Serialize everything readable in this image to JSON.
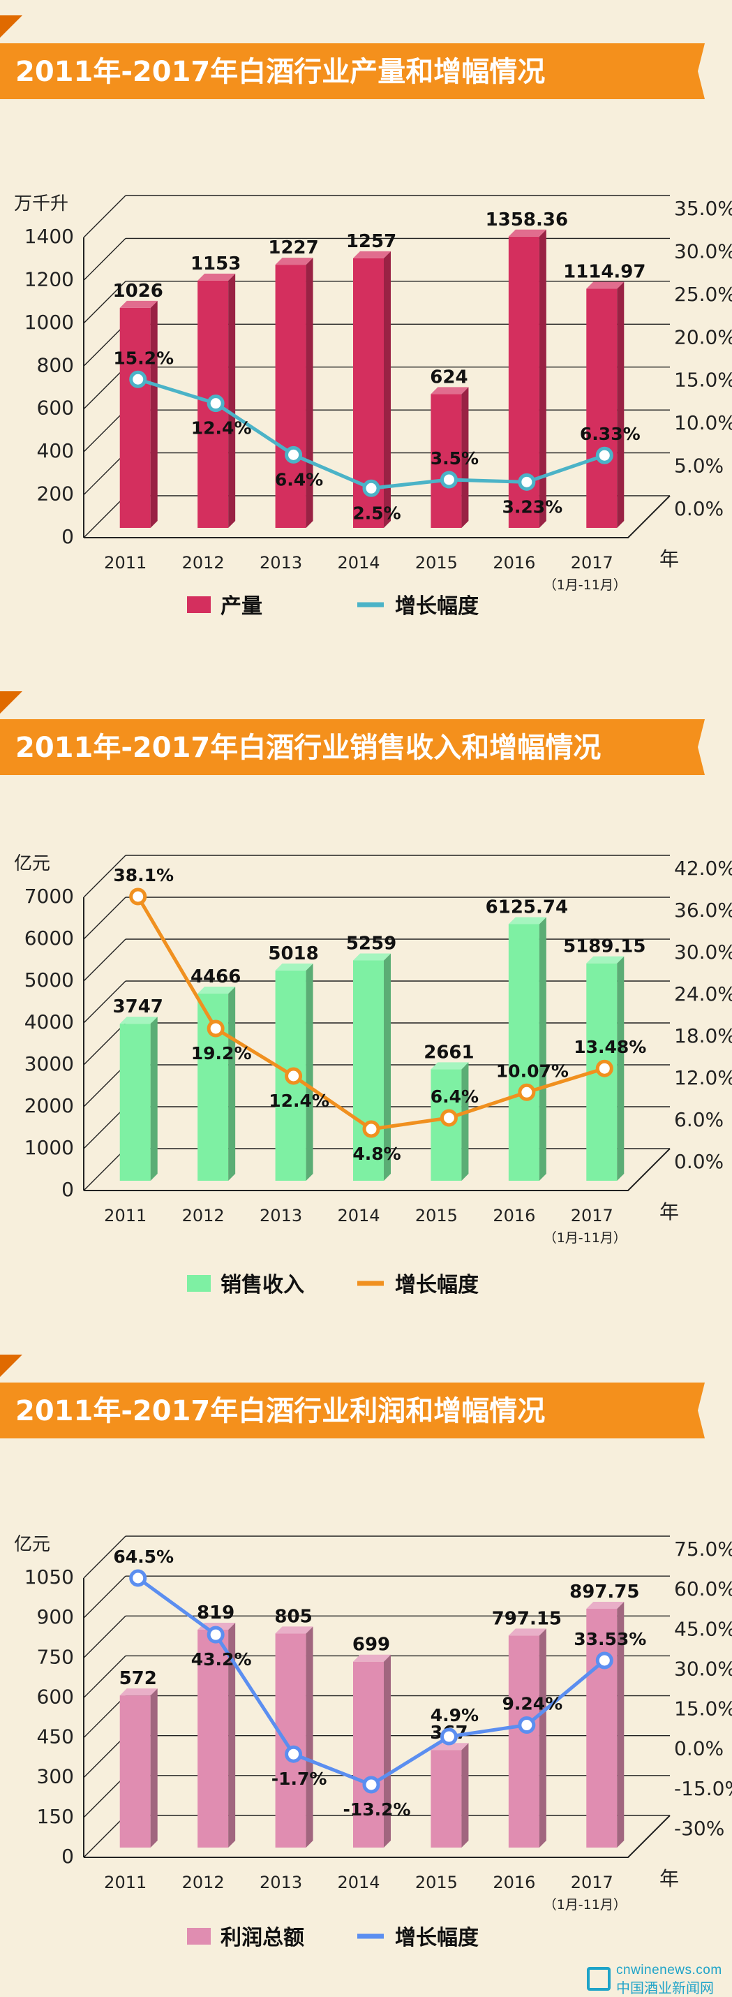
{
  "chart_data": [
    {
      "type": "bar",
      "title": "2011年-2017年白酒行业产量和增幅情况",
      "ylabel": "万千升",
      "xlabel": "年",
      "categories": [
        "2011",
        "2012",
        "2013",
        "2014",
        "2015",
        "2016",
        "2017"
      ],
      "category_note": "（1月-11月）",
      "ylim": [
        0,
        1400
      ],
      "yticks": [
        "0",
        "200",
        "400",
        "600",
        "800",
        "1000",
        "1200",
        "1400"
      ],
      "right_ylim": [
        0,
        35
      ],
      "right_yticks": [
        "0.0%",
        "5.0%",
        "10.0%",
        "15.0%",
        "20.0%",
        "25.0%",
        "30.0%",
        "35.0%"
      ],
      "series": [
        {
          "name": "产量",
          "values": [
            1026,
            1153,
            1227,
            1257,
            624,
            1358.36,
            1114.97
          ],
          "labels": [
            "1026",
            "1153",
            "1227",
            "1257",
            "624",
            "1358.36",
            "1114.97"
          ],
          "color": "#d42f5e"
        },
        {
          "name": "增长幅度",
          "values": [
            15.2,
            12.4,
            6.4,
            2.5,
            3.5,
            3.23,
            6.33
          ],
          "labels": [
            "15.2%",
            "12.4%",
            "6.4%",
            "2.5%",
            "3.5%",
            "3.23%",
            "6.33%"
          ],
          "color": "#4bb3c7"
        }
      ]
    },
    {
      "type": "bar",
      "title": "2011年-2017年白酒行业销售收入和增幅情况",
      "ylabel": "亿元",
      "xlabel": "年",
      "categories": [
        "2011",
        "2012",
        "2013",
        "2014",
        "2015",
        "2016",
        "2017"
      ],
      "category_note": "（1月-11月）",
      "ylim": [
        0,
        7000
      ],
      "yticks": [
        "0",
        "1000",
        "2000",
        "3000",
        "4000",
        "5000",
        "6000",
        "7000"
      ],
      "right_ylim": [
        0,
        42
      ],
      "right_yticks": [
        "0.0%",
        "6.0%",
        "12.0%",
        "18.0%",
        "24.0%",
        "30.0%",
        "36.0%",
        "42.0%"
      ],
      "series": [
        {
          "name": "销售收入",
          "values": [
            3747,
            4466,
            5018,
            5259,
            2661,
            6125.74,
            5189.15
          ],
          "labels": [
            "3747",
            "4466",
            "5018",
            "5259",
            "2661",
            "6125.74",
            "5189.15"
          ],
          "color": "#7ef0a3"
        },
        {
          "name": "增长幅度",
          "values": [
            38.1,
            19.2,
            12.4,
            4.8,
            6.4,
            10.07,
            13.48
          ],
          "labels": [
            "38.1%",
            "19.2%",
            "12.4%",
            "4.8%",
            "6.4%",
            "10.07%",
            "13.48%"
          ],
          "color": "#f0901f"
        }
      ]
    },
    {
      "type": "bar",
      "title": "2011年-2017年白酒行业利润和增幅情况",
      "ylabel": "亿元",
      "xlabel": "年",
      "categories": [
        "2011",
        "2012",
        "2013",
        "2014",
        "2015",
        "2016",
        "2017"
      ],
      "category_note": "（1月-11月）",
      "ylim": [
        0,
        1050
      ],
      "yticks": [
        "0",
        "150",
        "300",
        "450",
        "600",
        "750",
        "900",
        "1050"
      ],
      "right_ylim": [
        -30,
        75
      ],
      "right_yticks": [
        "-30%",
        "-15.0%",
        "0.0%",
        "15.0%",
        "30.0%",
        "45.0%",
        "60.0%",
        "75.0%"
      ],
      "series": [
        {
          "name": "利润总额",
          "values": [
            572,
            819,
            805,
            699,
            367,
            797.15,
            897.75
          ],
          "labels": [
            "572",
            "819",
            "805",
            "699",
            "367",
            "797.15",
            "897.75"
          ],
          "color": "#e08db1"
        },
        {
          "name": "增长幅度",
          "values": [
            64.5,
            43.2,
            -1.7,
            -13.2,
            4.9,
            9.24,
            33.53
          ],
          "labels": [
            "64.5%",
            "43.2%",
            "-1.7%",
            "-13.2%",
            "4.9%",
            "9.24%",
            "33.53%"
          ],
          "color": "#5b8ef0"
        }
      ]
    }
  ],
  "watermark": {
    "line1": "cnwinenews.com",
    "line2": "中国酒业新闻网"
  }
}
